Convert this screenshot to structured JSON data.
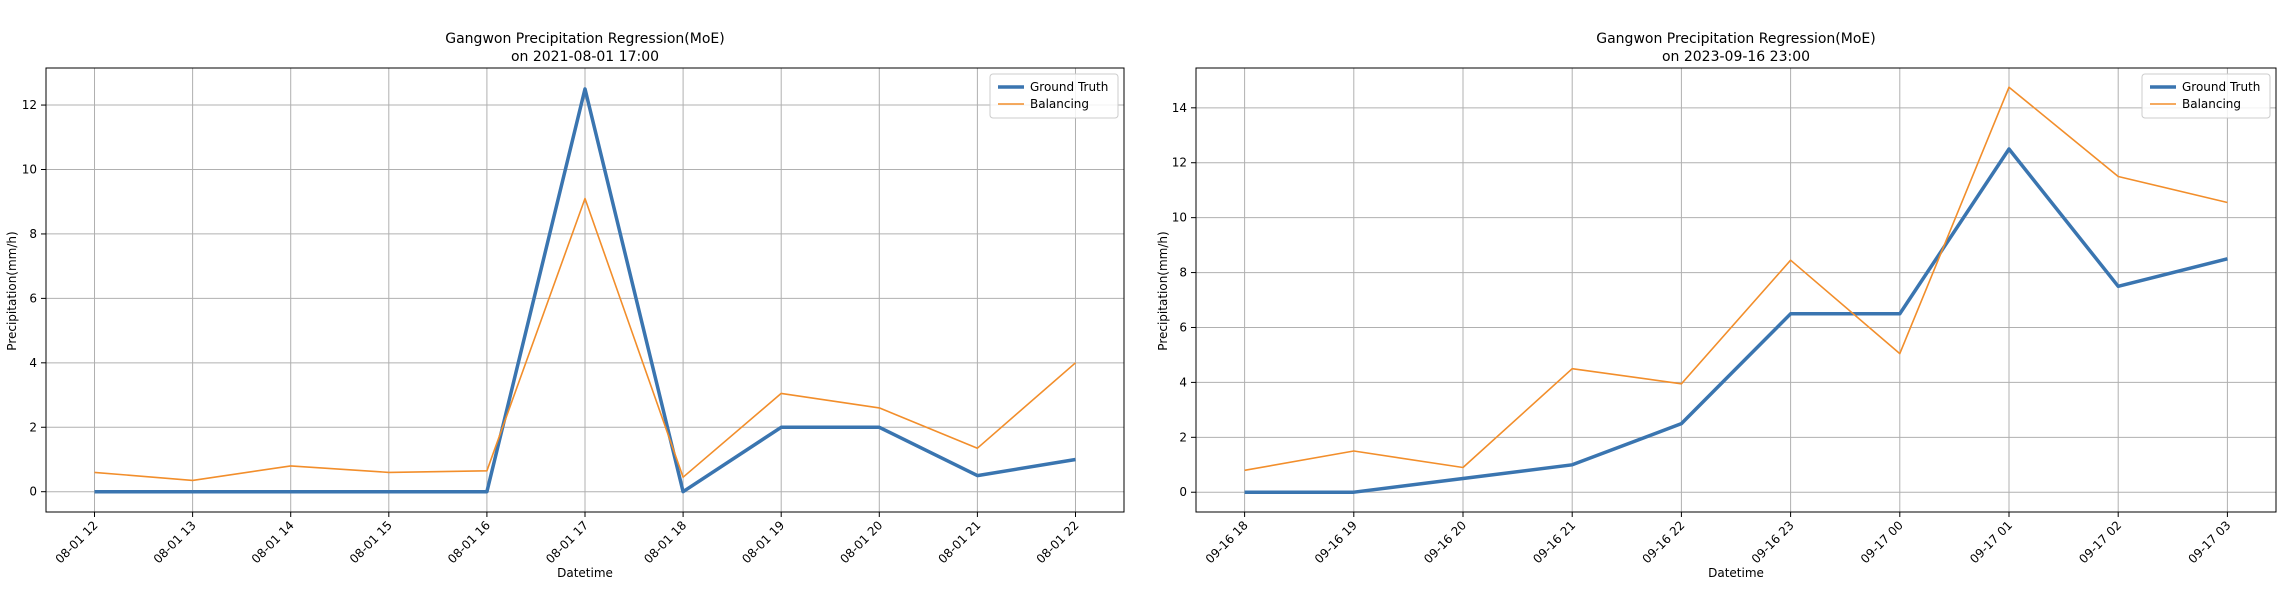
{
  "colors": {
    "ground_truth": "#3a75b0",
    "balancing": "#f28e2b",
    "grid": "#b0b0b0"
  },
  "chart_data": [
    {
      "type": "line",
      "title": "Gangwon Precipitation Regression(MoE)",
      "subtitle": "on 2021-08-01 17:00",
      "xlabel": "Datetime",
      "ylabel": "Precipitation(mm/h)",
      "ylim": [
        -0.63,
        13.15
      ],
      "yticks": [
        0,
        2,
        4,
        6,
        8,
        10,
        12
      ],
      "grid": true,
      "legend": "top-right",
      "categories": [
        "08-01 12",
        "08-01 13",
        "08-01 14",
        "08-01 15",
        "08-01 16",
        "08-01 17",
        "08-01 18",
        "08-01 19",
        "08-01 20",
        "08-01 21",
        "08-01 22"
      ],
      "series": [
        {
          "name": "Ground Truth",
          "values": [
            0,
            0,
            0,
            0,
            0,
            12.5,
            0,
            2,
            2,
            0.5,
            1
          ]
        },
        {
          "name": "Balancing",
          "values": [
            0.6,
            0.35,
            0.8,
            0.6,
            0.65,
            9.1,
            0.45,
            3.05,
            2.6,
            1.35,
            4.0
          ]
        }
      ]
    },
    {
      "type": "line",
      "title": "Gangwon Precipitation Regression(MoE)",
      "subtitle": "on 2023-09-16 23:00",
      "xlabel": "Datetime",
      "ylabel": "Precipitation(mm/h)",
      "ylim": [
        -0.72,
        15.45
      ],
      "yticks": [
        0,
        2,
        4,
        6,
        8,
        10,
        12,
        14
      ],
      "grid": true,
      "legend": "top-right",
      "categories": [
        "09-16 18",
        "09-16 19",
        "09-16 20",
        "09-16 21",
        "09-16 22",
        "09-16 23",
        "09-17 00",
        "09-17 01",
        "09-17 02",
        "09-17 03"
      ],
      "series": [
        {
          "name": "Ground Truth",
          "values": [
            0,
            0,
            0.5,
            1,
            2.5,
            6.5,
            6.5,
            12.5,
            7.5,
            8.5
          ]
        },
        {
          "name": "Balancing",
          "values": [
            0.8,
            1.5,
            0.9,
            4.5,
            3.95,
            8.45,
            5.05,
            14.75,
            11.5,
            10.55
          ]
        }
      ]
    }
  ]
}
